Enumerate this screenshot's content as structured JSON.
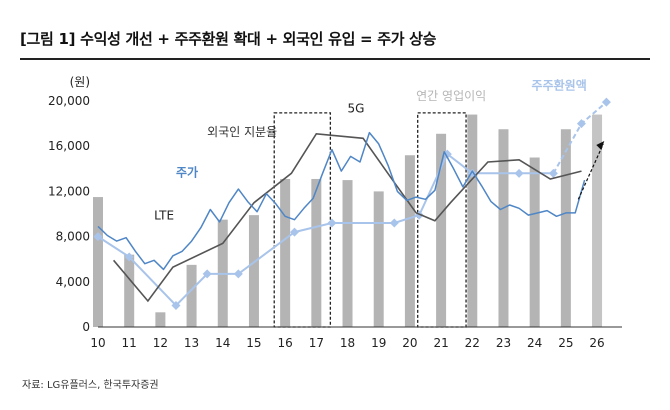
{
  "header": {
    "title": "[그림 1] 수익성 개선 + 주주환원 확대 + 외국인 유입 = 주가 상승"
  },
  "footer": {
    "source": "자료: LG유플러스, 한국투자증권"
  },
  "colors": {
    "bar": "#b4b4b4",
    "price": "#4f86c6",
    "foreign": "#555555",
    "shareholder": "#a9c4ea",
    "forecast_bar": "#c4c4c4"
  },
  "chart_data": {
    "type": "bar+line",
    "ylabel": "(원)",
    "ylim": [
      0,
      20000
    ],
    "yticks": [
      0,
      4000,
      8000,
      12000,
      16000,
      20000
    ],
    "xlim": [
      10,
      26.8
    ],
    "xticks": [
      "10",
      "11",
      "12",
      "13",
      "14",
      "15",
      "16",
      "17",
      "18",
      "19",
      "20",
      "21",
      "22",
      "23",
      "24",
      "25",
      "26"
    ],
    "grid": false,
    "annotations": {
      "price": "주가",
      "foreign": "외국인 지분율",
      "op_profit": "연간 영업이익",
      "shareholder": "주주환원액",
      "lte": "LTE",
      "5g": "5G"
    },
    "bars": {
      "name": "연간 영업이익",
      "x": [
        10,
        11,
        12,
        13,
        14,
        15,
        16,
        17,
        18,
        19,
        20,
        21,
        22,
        23,
        24,
        25,
        26
      ],
      "values": [
        11500,
        6400,
        1300,
        5500,
        9500,
        9900,
        13100,
        13100,
        13000,
        12000,
        15200,
        17100,
        18800,
        17500,
        15000,
        17500,
        18800
      ]
    },
    "shareholder": {
      "name": "주주환원액",
      "x": [
        10,
        11,
        12.5,
        13.5,
        14.5,
        16.3,
        17.5,
        19.5,
        20.3,
        21.2,
        22,
        23.5,
        24.6
      ],
      "values": [
        8000,
        6200,
        1900,
        4700,
        4700,
        8400,
        9200,
        9200,
        9900,
        15300,
        13600,
        13600,
        13600
      ],
      "forecast_x": [
        24.6,
        25.5,
        26.3
      ],
      "forecast_values": [
        13600,
        18000,
        19900
      ]
    },
    "foreign": {
      "name": "외국인 지분율",
      "x": [
        10.5,
        11.6,
        12.4,
        14,
        15,
        16.2,
        17,
        18.5,
        19.5,
        20.2,
        20.8,
        21.3,
        22.5,
        23.5,
        24.5,
        25.5
      ],
      "values": [
        5900,
        2300,
        5300,
        7400,
        11000,
        13600,
        17100,
        16700,
        12800,
        10100,
        9400,
        11000,
        14600,
        14800,
        13100,
        13800
      ]
    },
    "price": {
      "name": "주가",
      "x": [
        10,
        10.3,
        10.6,
        10.9,
        11.2,
        11.5,
        11.8,
        12.1,
        12.4,
        12.7,
        13,
        13.3,
        13.6,
        13.9,
        14.2,
        14.5,
        14.8,
        15.1,
        15.4,
        15.7,
        16,
        16.3,
        16.6,
        16.9,
        17.2,
        17.5,
        17.8,
        18.1,
        18.4,
        18.7,
        19,
        19.3,
        19.6,
        19.9,
        20.2,
        20.5,
        20.8,
        21.1,
        21.4,
        21.7,
        22,
        22.3,
        22.6,
        22.9,
        23.2,
        23.5,
        23.8,
        24.1,
        24.4,
        24.7,
        25,
        25.3,
        25.6
      ],
      "values": [
        8900,
        8100,
        7600,
        7900,
        6700,
        5600,
        5900,
        5100,
        6300,
        6700,
        7600,
        8800,
        10400,
        9300,
        11000,
        12200,
        11100,
        10200,
        11800,
        10900,
        9800,
        9500,
        10500,
        11400,
        13600,
        15700,
        13800,
        15100,
        14600,
        17200,
        16200,
        14300,
        12000,
        11200,
        11500,
        11300,
        12100,
        15500,
        14000,
        12400,
        13800,
        12500,
        11100,
        10400,
        10800,
        10500,
        9900,
        10100,
        10300,
        9800,
        10100,
        10100,
        13000
      ]
    }
  }
}
